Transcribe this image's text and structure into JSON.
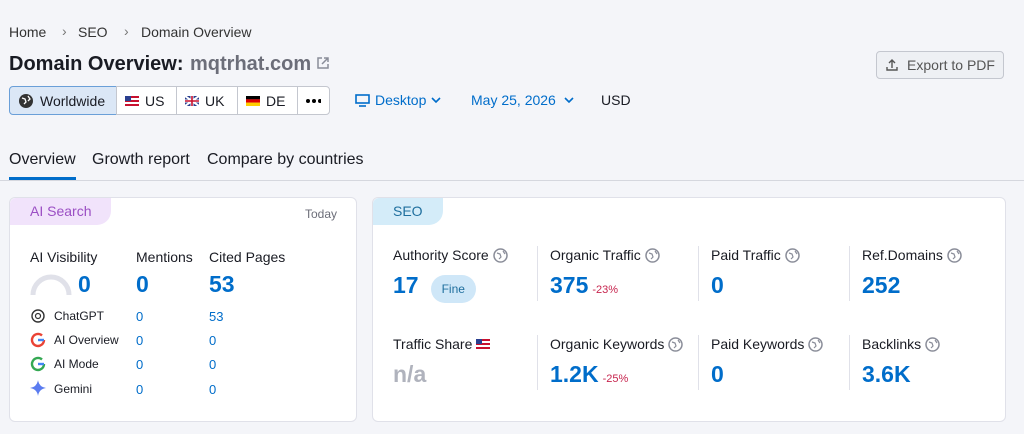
{
  "breadcrumb": [
    "Home",
    "SEO",
    "Domain Overview"
  ],
  "header": {
    "title": "Domain Overview:",
    "domain": "mqtrhat.com",
    "export": "Export to PDF"
  },
  "filters": {
    "regions": [
      "Worldwide",
      "US",
      "UK",
      "DE"
    ],
    "device": "Desktop",
    "date": "May 25, 2026",
    "currency": "USD"
  },
  "tabs": [
    "Overview",
    "Growth report",
    "Compare by countries"
  ],
  "ai_search": {
    "label": "AI Search",
    "date": "Today",
    "columns": [
      "AI Visibility",
      "Mentions",
      "Cited Pages"
    ],
    "totals": [
      0,
      0,
      53
    ],
    "rows": [
      {
        "name": "ChatGPT",
        "values": [
          0,
          53
        ]
      },
      {
        "name": "AI Overview",
        "values": [
          0,
          0
        ]
      },
      {
        "name": "AI Mode",
        "values": [
          0,
          0
        ]
      },
      {
        "name": "Gemini",
        "values": [
          0,
          0
        ]
      }
    ]
  },
  "seo": {
    "label": "SEO",
    "metrics": [
      {
        "name": "Authority Score",
        "value": 17,
        "badge": "Fine"
      },
      {
        "name": "Organic Traffic",
        "value": 375,
        "change": "-23%"
      },
      {
        "name": "Paid Traffic",
        "value": 0
      },
      {
        "name": "Ref.Domains",
        "value": 252
      },
      {
        "name": "Traffic Share",
        "value": "n/a"
      },
      {
        "name": "Organic Keywords",
        "value": "1.2K",
        "change": "-25%"
      },
      {
        "name": "Paid Keywords",
        "value": 0
      },
      {
        "name": "Backlinks",
        "value": "3.6K"
      }
    ]
  }
}
